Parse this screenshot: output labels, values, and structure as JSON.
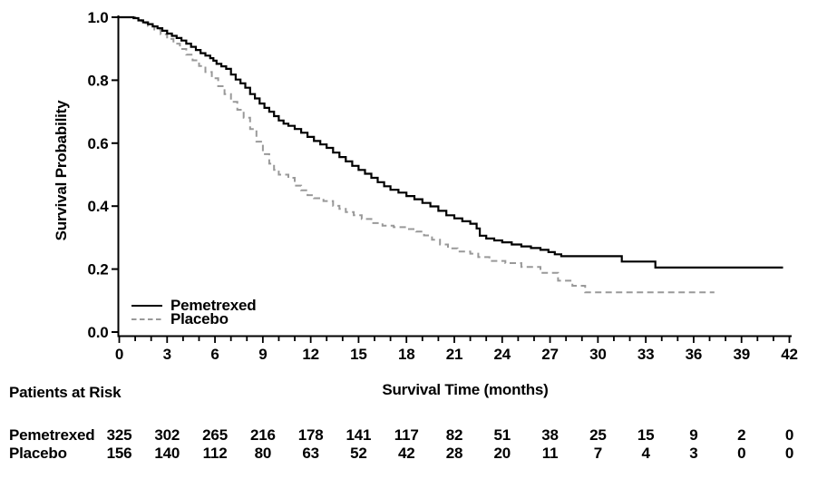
{
  "chart_data": {
    "type": "line",
    "subtype": "kaplan-meier-step-curves",
    "title": "",
    "xlabel": "Survival Time (months)",
    "ylabel": "Survival Probability",
    "xlim": [
      0,
      42
    ],
    "ylim": [
      0.0,
      1.0
    ],
    "grid": false,
    "x_ticks": [
      0,
      3,
      6,
      9,
      12,
      15,
      18,
      21,
      24,
      27,
      30,
      33,
      36,
      39,
      42
    ],
    "x_minor_tick_step": 1,
    "y_ticks": [
      0.0,
      0.2,
      0.4,
      0.6,
      0.8,
      1.0
    ],
    "y_tick_labels": [
      "0.0",
      "0.2",
      "0.4",
      "0.6",
      "0.8",
      "1.0"
    ],
    "legend_position": "lower-left-inside",
    "colors": {
      "pemetrexed": "#000000",
      "placebo": "#999999",
      "text": "#000000",
      "background": "#ffffff"
    },
    "series": [
      {
        "name": "Pemetrexed",
        "color": "#000000",
        "line_style": "solid",
        "points": [
          [
            0,
            1.0
          ],
          [
            0.9,
            0.997
          ],
          [
            1.2,
            0.99
          ],
          [
            1.5,
            0.984
          ],
          [
            1.8,
            0.978
          ],
          [
            2.1,
            0.971
          ],
          [
            2.4,
            0.965
          ],
          [
            2.7,
            0.957
          ],
          [
            3.0,
            0.948
          ],
          [
            3.3,
            0.941
          ],
          [
            3.6,
            0.934
          ],
          [
            3.9,
            0.926
          ],
          [
            4.2,
            0.916
          ],
          [
            4.5,
            0.906
          ],
          [
            4.8,
            0.896
          ],
          [
            5.1,
            0.886
          ],
          [
            5.4,
            0.878
          ],
          [
            5.7,
            0.87
          ],
          [
            5.9,
            0.862
          ],
          [
            6.1,
            0.852
          ],
          [
            6.4,
            0.844
          ],
          [
            6.7,
            0.836
          ],
          [
            7.0,
            0.818
          ],
          [
            7.3,
            0.802
          ],
          [
            7.6,
            0.79
          ],
          [
            7.9,
            0.776
          ],
          [
            8.2,
            0.756
          ],
          [
            8.5,
            0.742
          ],
          [
            8.8,
            0.726
          ],
          [
            9.1,
            0.712
          ],
          [
            9.4,
            0.7
          ],
          [
            9.7,
            0.686
          ],
          [
            10.0,
            0.672
          ],
          [
            10.3,
            0.662
          ],
          [
            10.6,
            0.655
          ],
          [
            11.0,
            0.645
          ],
          [
            11.4,
            0.633
          ],
          [
            11.8,
            0.62
          ],
          [
            12.2,
            0.607
          ],
          [
            12.6,
            0.596
          ],
          [
            13.0,
            0.585
          ],
          [
            13.4,
            0.57
          ],
          [
            13.8,
            0.556
          ],
          [
            14.2,
            0.542
          ],
          [
            14.6,
            0.528
          ],
          [
            15.0,
            0.515
          ],
          [
            15.4,
            0.503
          ],
          [
            15.8,
            0.49
          ],
          [
            16.2,
            0.476
          ],
          [
            16.6,
            0.463
          ],
          [
            17.0,
            0.452
          ],
          [
            17.5,
            0.443
          ],
          [
            18.0,
            0.432
          ],
          [
            18.5,
            0.422
          ],
          [
            19.0,
            0.41
          ],
          [
            19.5,
            0.399
          ],
          [
            20.0,
            0.385
          ],
          [
            20.5,
            0.371
          ],
          [
            21.0,
            0.361
          ],
          [
            21.5,
            0.352
          ],
          [
            22.0,
            0.344
          ],
          [
            22.4,
            0.329
          ],
          [
            22.6,
            0.306
          ],
          [
            23.0,
            0.297
          ],
          [
            23.5,
            0.291
          ],
          [
            24.0,
            0.285
          ],
          [
            24.6,
            0.278
          ],
          [
            25.2,
            0.272
          ],
          [
            25.8,
            0.267
          ],
          [
            26.4,
            0.261
          ],
          [
            26.9,
            0.254
          ],
          [
            27.3,
            0.247
          ],
          [
            27.7,
            0.241
          ],
          [
            31.5,
            0.224
          ],
          [
            33.6,
            0.205
          ],
          [
            41.6,
            0.205
          ]
        ]
      },
      {
        "name": "Placebo",
        "color": "#999999",
        "line_style": "dashed",
        "points": [
          [
            0,
            1.0
          ],
          [
            1.0,
            0.991
          ],
          [
            1.4,
            0.981
          ],
          [
            1.8,
            0.972
          ],
          [
            2.2,
            0.961
          ],
          [
            2.6,
            0.946
          ],
          [
            3.0,
            0.931
          ],
          [
            3.4,
            0.916
          ],
          [
            3.8,
            0.899
          ],
          [
            4.2,
            0.881
          ],
          [
            4.6,
            0.863
          ],
          [
            5.0,
            0.845
          ],
          [
            5.4,
            0.826
          ],
          [
            5.8,
            0.806
          ],
          [
            6.2,
            0.781
          ],
          [
            6.6,
            0.756
          ],
          [
            7.0,
            0.731
          ],
          [
            7.4,
            0.706
          ],
          [
            7.8,
            0.681
          ],
          [
            8.2,
            0.645
          ],
          [
            8.6,
            0.605
          ],
          [
            9.0,
            0.565
          ],
          [
            9.4,
            0.535
          ],
          [
            9.7,
            0.515
          ],
          [
            10.0,
            0.5
          ],
          [
            10.6,
            0.49
          ],
          [
            11.0,
            0.465
          ],
          [
            11.4,
            0.45
          ],
          [
            11.8,
            0.435
          ],
          [
            12.2,
            0.425
          ],
          [
            12.8,
            0.416
          ],
          [
            13.4,
            0.401
          ],
          [
            13.8,
            0.391
          ],
          [
            14.2,
            0.381
          ],
          [
            14.7,
            0.371
          ],
          [
            15.2,
            0.359
          ],
          [
            15.8,
            0.346
          ],
          [
            16.5,
            0.338
          ],
          [
            17.2,
            0.333
          ],
          [
            18.0,
            0.327
          ],
          [
            18.6,
            0.319
          ],
          [
            19.1,
            0.307
          ],
          [
            19.6,
            0.293
          ],
          [
            20.1,
            0.278
          ],
          [
            20.6,
            0.266
          ],
          [
            21.2,
            0.256
          ],
          [
            22.0,
            0.249
          ],
          [
            22.5,
            0.238
          ],
          [
            23.2,
            0.226
          ],
          [
            24.2,
            0.219
          ],
          [
            25.2,
            0.207
          ],
          [
            26.4,
            0.188
          ],
          [
            27.5,
            0.163
          ],
          [
            28.4,
            0.147
          ],
          [
            29.2,
            0.126
          ],
          [
            37.3,
            0.126
          ]
        ]
      }
    ],
    "risk_table": {
      "title": "Patients at Risk",
      "time_points": [
        0,
        3,
        6,
        9,
        12,
        15,
        18,
        21,
        24,
        27,
        30,
        33,
        36,
        39,
        42
      ],
      "rows": [
        {
          "label": "Pemetrexed",
          "counts": [
            325,
            302,
            265,
            216,
            178,
            141,
            117,
            82,
            51,
            38,
            25,
            15,
            9,
            2,
            0
          ]
        },
        {
          "label": "Placebo",
          "counts": [
            156,
            140,
            112,
            80,
            63,
            52,
            42,
            28,
            20,
            11,
            7,
            4,
            3,
            0,
            0
          ]
        }
      ]
    }
  }
}
